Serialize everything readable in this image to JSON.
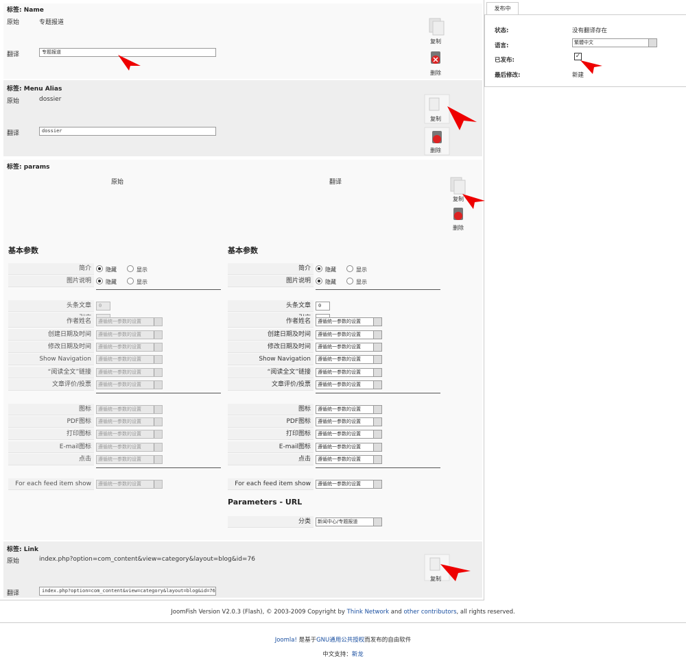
{
  "name_section": {
    "title": "标签: Name",
    "original_label": "原始",
    "original": "专题报道",
    "translation_label": "翻译",
    "translation": "专题报道",
    "copy": "复制",
    "delete": "删除"
  },
  "alias_section": {
    "title": "标签: Menu Alias",
    "original_label": "原始",
    "original": "dossier",
    "translation_label": "翻译",
    "translation": "dossier",
    "copy": "复制",
    "delete": "删除"
  },
  "params_section": {
    "title": "标签: params",
    "original_label": "原始",
    "translation_label": "翻译",
    "copy": "复制",
    "delete": "删除",
    "columns": [
      {
        "disabled": true,
        "sections": [
          {
            "heading": "基本参数",
            "groups": [
              [
                {
                  "label": "简介",
                  "field": "radio",
                  "options": [
                    "隐藏",
                    "显示"
                  ]
                },
                {
                  "label": "图片说明",
                  "field": "radio",
                  "options": [
                    "隐藏",
                    "显示"
                  ]
                }
              ],
              [
                {
                  "label": "头条文章",
                  "field": "text",
                  "value": "0"
                },
                {
                  "label": "引言",
                  "field": "text"
                },
                {
                  "label": "作者姓名",
                  "field": "select",
                  "value": "遵循统一参数的设置"
                },
                {
                  "label": "创建日期及时间",
                  "field": "select",
                  "value": "遵循统一参数的设置"
                },
                {
                  "label": "修改日期及时间",
                  "field": "select",
                  "value": "遵循统一参数的设置"
                },
                {
                  "label": "Show Navigation",
                  "field": "select",
                  "value": "遵循统一参数的设置"
                },
                {
                  "label": "“阅读全文”链接",
                  "field": "select",
                  "value": "遵循统一参数的设置"
                },
                {
                  "label": "文章评价/投票",
                  "field": "select",
                  "value": "遵循统一参数的设置"
                }
              ],
              [
                {
                  "label": "图标",
                  "field": "select",
                  "value": "遵循统一参数的设置"
                },
                {
                  "label": "PDF图标",
                  "field": "select",
                  "value": "遵循统一参数的设置"
                },
                {
                  "label": "打印图标",
                  "field": "select",
                  "value": "遵循统一参数的设置"
                },
                {
                  "label": "E-mail图标",
                  "field": "select",
                  "value": "遵循统一参数的设置"
                },
                {
                  "label": "点击",
                  "field": "select",
                  "value": "遵循统一参数的设置"
                }
              ],
              [
                {
                  "label": "For each feed item show",
                  "field": "select",
                  "value": "遵循统一参数的设置"
                }
              ]
            ]
          }
        ]
      },
      {
        "disabled": false,
        "sections": [
          {
            "heading": "基本参数",
            "groups": [
              [
                {
                  "label": "简介",
                  "field": "radio",
                  "options": [
                    "隐藏",
                    "显示"
                  ]
                },
                {
                  "label": "图片说明",
                  "field": "radio",
                  "options": [
                    "隐藏",
                    "显示"
                  ]
                }
              ],
              [
                {
                  "label": "头条文章",
                  "field": "text",
                  "value": "0"
                },
                {
                  "label": "引言",
                  "field": "text"
                },
                {
                  "label": "作者姓名",
                  "field": "select",
                  "value": "遵循统一参数的设置"
                },
                {
                  "label": "创建日期及时间",
                  "field": "select",
                  "value": "遵循统一参数的设置"
                },
                {
                  "label": "修改日期及时间",
                  "field": "select",
                  "value": "遵循统一参数的设置"
                },
                {
                  "label": "Show Navigation",
                  "field": "select",
                  "value": "遵循统一参数的设置"
                },
                {
                  "label": "“阅读全文”链接",
                  "field": "select",
                  "value": "遵循统一参数的设置"
                },
                {
                  "label": "文章评价/投票",
                  "field": "select",
                  "value": "遵循统一参数的设置"
                }
              ],
              [
                {
                  "label": "图标",
                  "field": "select",
                  "value": "遵循统一参数的设置"
                },
                {
                  "label": "PDF图标",
                  "field": "select",
                  "value": "遵循统一参数的设置"
                },
                {
                  "label": "打印图标",
                  "field": "select",
                  "value": "遵循统一参数的设置"
                },
                {
                  "label": "E-mail图标",
                  "field": "select",
                  "value": "遵循统一参数的设置"
                },
                {
                  "label": "点击",
                  "field": "select",
                  "value": "遵循统一参数的设置"
                }
              ],
              [
                {
                  "label": "For each feed item show",
                  "field": "select",
                  "value": "遵循统一参数的设置"
                }
              ]
            ]
          },
          {
            "heading": "Parameters - URL",
            "groups": [
              [
                {
                  "label": "分类",
                  "field": "select",
                  "value": "新闻中心/专题报道"
                }
              ]
            ]
          }
        ]
      }
    ]
  },
  "link_section": {
    "title": "标签: Link",
    "original_label": "原始",
    "original": "index.php?option=com_content&view=category&layout=blog&id=76",
    "translation_label": "翻译",
    "translation": "index.php?option=com_content&view=category&layout=blog&id=76",
    "copy": "复制"
  },
  "publish_panel": {
    "tab": "发布中",
    "rows": [
      {
        "label": "状态:",
        "value": "没有翻译存在"
      },
      {
        "label": "语言:",
        "value": "繁體中文"
      },
      {
        "label": "已发布:"
      },
      {
        "label": "最后修改:",
        "value": "新建"
      }
    ]
  },
  "footer": {
    "credit": [
      "JoomFish Version V2.0.3 (Flash), © 2003-2009 Copyright by ",
      "Think Network",
      " and ",
      "other contributors",
      ", all rights reserved."
    ],
    "license": [
      "Joomla!",
      " 是基于",
      "GNU通用公共授权",
      "而发布的自由软件"
    ],
    "support": [
      "中文支持：",
      "新龙"
    ]
  }
}
